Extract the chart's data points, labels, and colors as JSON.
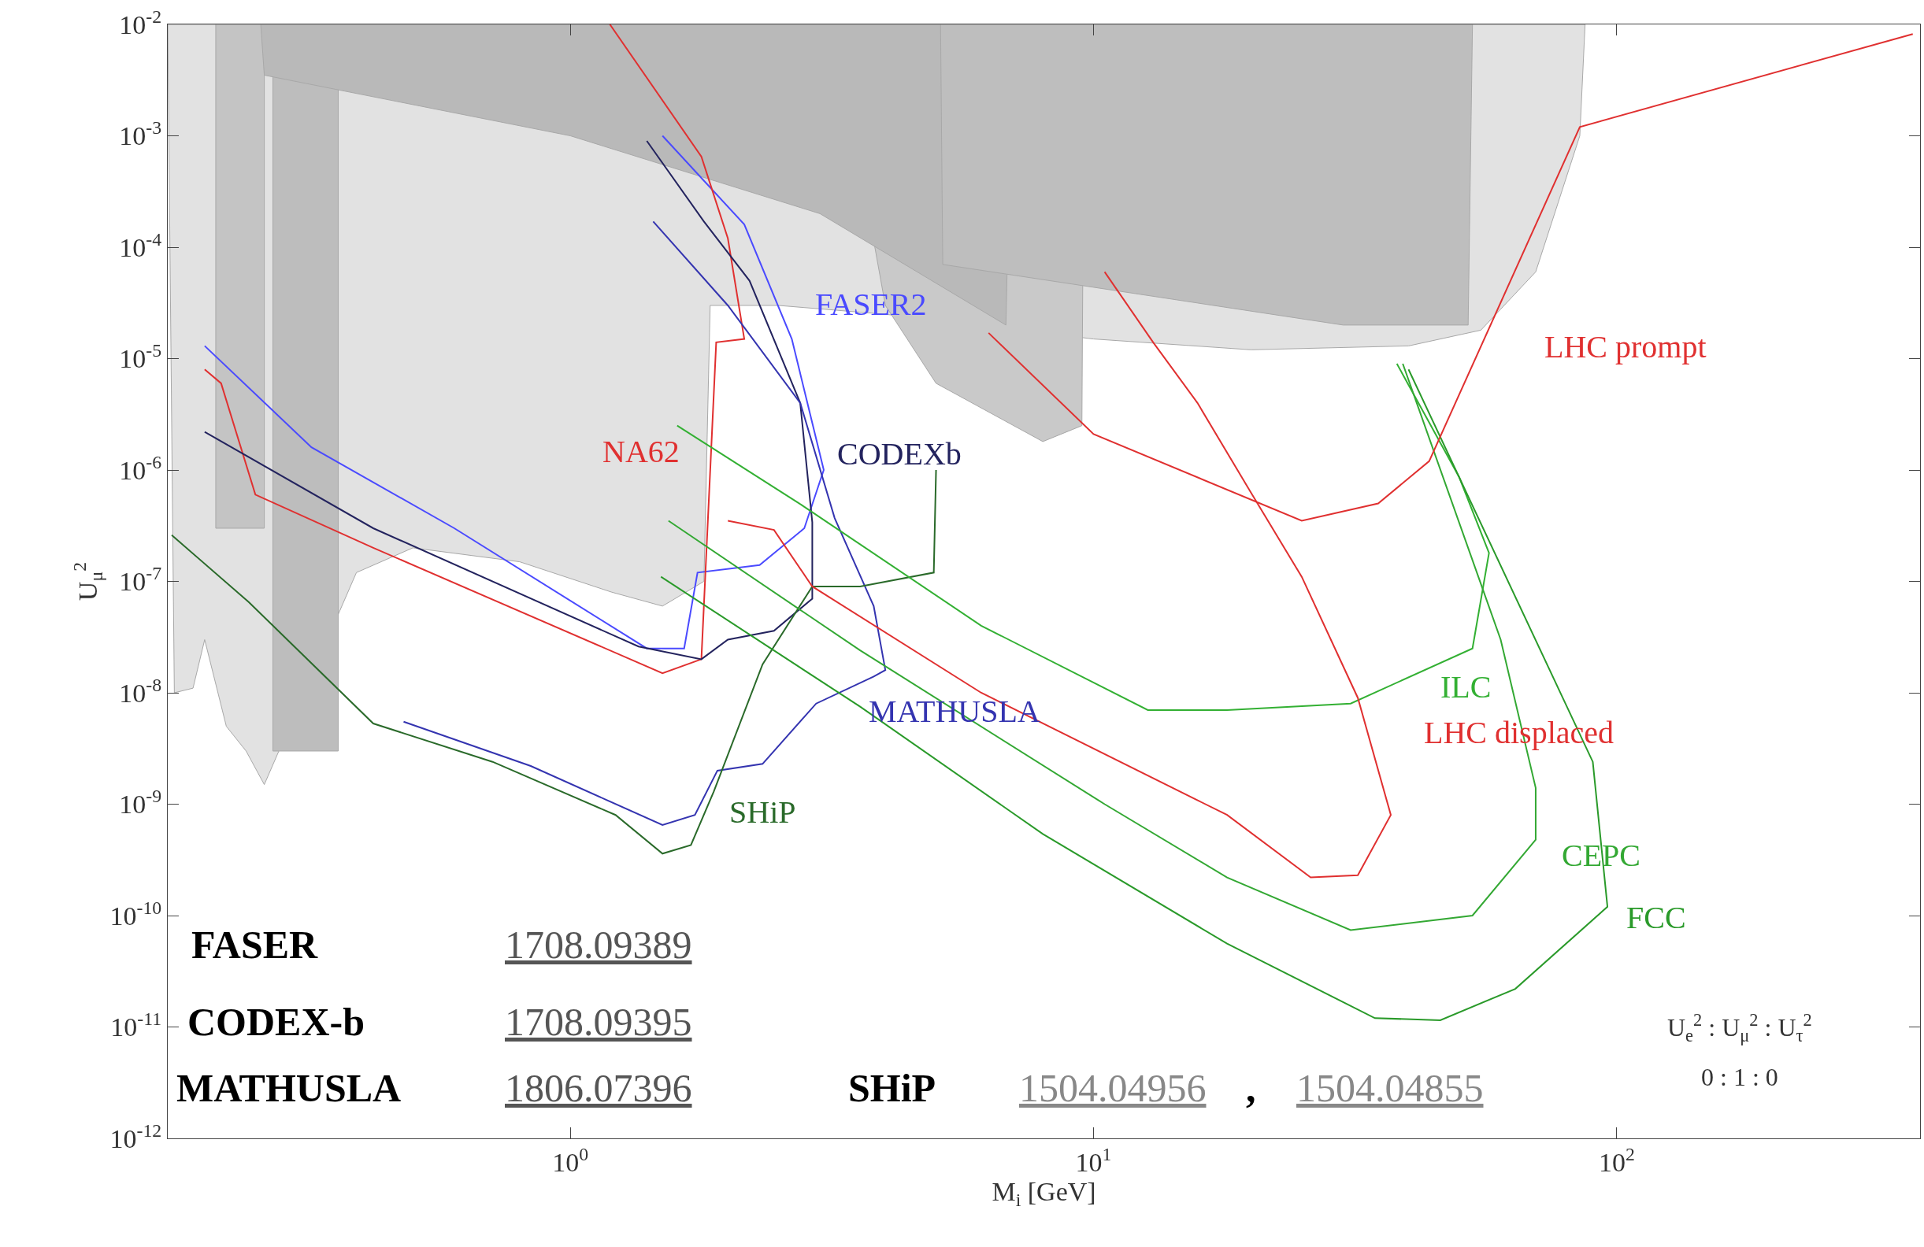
{
  "chart_data": {
    "type": "line",
    "xlabel": "M$_{i}$ [GeV]",
    "ylabel": "U$_{μ}$$^{2}$",
    "log": "xy",
    "xlim": [
      0.17,
      380
    ],
    "ylim": [
      1e-12,
      0.01
    ],
    "xticks": [
      {
        "value": 1,
        "label": "10$^{0}$"
      },
      {
        "value": 10,
        "label": "10$^{1}$"
      },
      {
        "value": 100,
        "label": "10$^{2}$"
      }
    ],
    "yticks": [
      {
        "value": 1e-12,
        "label": "10$^{-12}$"
      },
      {
        "value": 1e-11,
        "label": "10$^{-11}$"
      },
      {
        "value": 1e-10,
        "label": "10$^{-10}$"
      },
      {
        "value": 1e-09,
        "label": "10$^{-9}$"
      },
      {
        "value": 1e-08,
        "label": "10$^{-8}$"
      },
      {
        "value": 1e-07,
        "label": "10$^{-7}$"
      },
      {
        "value": 1e-06,
        "label": "10$^{-6}$"
      },
      {
        "value": 1e-05,
        "label": "10$^{-5}$"
      },
      {
        "value": 0.0001,
        "label": "10$^{-4}$"
      },
      {
        "value": 0.001,
        "label": "10$^{-3}$"
      },
      {
        "value": 0.01,
        "label": "10$^{-2}$"
      }
    ],
    "series": [
      {
        "type": "area",
        "color": "#e2e2e2",
        "x": [
          0.17,
          0.175,
          0.19,
          0.2,
          0.22,
          0.24,
          0.26,
          0.39,
          0.5,
          0.8,
          1.2,
          1.5,
          1.8,
          1.85,
          2.5,
          4,
          10,
          20,
          40,
          55,
          70,
          85,
          87
        ],
        "values": [
          0.01,
          1e-08,
          1.1e-08,
          3e-08,
          5e-09,
          3e-09,
          1.5e-09,
          1.2e-07,
          2e-07,
          1.5e-07,
          8e-08,
          6e-08,
          1e-07,
          3e-05,
          3e-05,
          2.5e-05,
          1.5e-05,
          1.2e-05,
          1.3e-05,
          1.8e-05,
          6e-05,
          0.001,
          0.01
        ]
      },
      {
        "type": "area",
        "color": "#c9c9c9",
        "x": [
          3.2,
          4,
          5,
          8,
          9.5,
          9.6
        ],
        "values": [
          0.01,
          3e-05,
          6e-06,
          1.8e-06,
          2.5e-06,
          0.01
        ]
      },
      {
        "type": "area",
        "color": "#c4c4c4",
        "x": [
          0.21,
          0.21,
          0.26,
          0.26
        ],
        "values": [
          0.01,
          3e-07,
          3e-07,
          0.01
        ]
      },
      {
        "type": "area",
        "color": "#bdbdbd",
        "x": [
          0.27,
          0.27,
          0.36,
          0.36
        ],
        "values": [
          0.01,
          3e-09,
          3e-09,
          0.01
        ]
      },
      {
        "type": "area",
        "color": "#b9b9b9",
        "x": [
          0.256,
          0.26,
          1,
          3,
          6.8,
          7
        ],
        "values": [
          0.01,
          0.0035,
          0.001,
          0.0002,
          2e-05,
          0.01
        ]
      },
      {
        "type": "area",
        "color": "#bebebe",
        "x": [
          5.1,
          5.15,
          30,
          52,
          53
        ],
        "values": [
          0.01,
          7e-05,
          2e-05,
          2e-05,
          0.01
        ]
      },
      {
        "color": "#4a4aff",
        "x": [
          0.2,
          0.32,
          0.6,
          1.4,
          1.65,
          1.75,
          2.3,
          2.8,
          3.05,
          2.65,
          2.15,
          1.5
        ],
        "values": [
          1.3e-05,
          1.6e-06,
          3e-07,
          2.5e-08,
          2.5e-08,
          1.2e-07,
          1.4e-07,
          3e-07,
          1e-06,
          1.5e-05,
          0.00016,
          0.001
        ]
      },
      {
        "color": "#e03030",
        "x": [
          0.2,
          0.215,
          0.25,
          0.42,
          1.5,
          1.78,
          1.9,
          2.15,
          2.0,
          1.78,
          1.19
        ],
        "values": [
          8e-06,
          6e-06,
          6e-07,
          2e-07,
          1.5e-08,
          2e-08,
          1.4e-05,
          1.5e-05,
          0.00012,
          0.00065,
          0.01
        ]
      },
      {
        "color": "#23235e",
        "x": [
          0.2,
          0.42,
          1.35,
          1.78,
          2.0,
          2.45,
          2.9,
          2.9,
          2.75,
          2.2,
          1.8,
          1.4
        ],
        "values": [
          2.2e-06,
          3e-07,
          2.6e-08,
          2e-08,
          3e-08,
          3.6e-08,
          7e-08,
          3.4e-07,
          4e-06,
          5e-05,
          0.00017,
          0.0009
        ]
      },
      {
        "color": "#3434b0",
        "x": [
          0.48,
          0.84,
          1.5,
          1.73,
          1.91,
          2.33,
          2.95,
          3.8,
          4.0,
          3.8,
          3.2,
          2.75,
          2.0,
          1.44
        ],
        "values": [
          5.5e-09,
          2.2e-09,
          6.5e-10,
          8e-10,
          2e-09,
          2.3e-09,
          8e-09,
          1.4e-08,
          1.6e-08,
          6e-08,
          3.7e-07,
          4e-06,
          3e-05,
          0.00017
        ]
      },
      {
        "color": "#2a6a2a",
        "x": [
          0.173,
          0.243,
          0.42,
          0.71,
          1.22,
          1.5,
          1.7,
          1.88,
          2.33,
          2.9,
          3.58,
          4.95,
          5.0
        ],
        "values": [
          2.6e-07,
          6.5e-08,
          5.3e-09,
          2.4e-09,
          8e-10,
          3.6e-10,
          4.3e-10,
          1.3e-09,
          1.8e-08,
          9e-08,
          9e-08,
          1.2e-07,
          1e-06
        ]
      },
      {
        "color": "#33b033",
        "x": [
          1.6,
          2.74,
          6.1,
          12.7,
          18,
          31,
          53,
          57,
          50,
          38
        ],
        "values": [
          2.5e-06,
          5e-07,
          4e-08,
          7e-09,
          7e-09,
          8e-09,
          2.5e-08,
          1.8e-07,
          8.6e-07,
          9e-06
        ]
      },
      {
        "color": "#33a833",
        "x": [
          1.54,
          3.58,
          10.5,
          18,
          31,
          53,
          70,
          70,
          60,
          39
        ],
        "values": [
          3.5e-07,
          2.4e-08,
          1e-09,
          2.2e-10,
          7.4e-11,
          1e-10,
          4.8e-10,
          1.4e-09,
          3e-08,
          9e-06
        ]
      },
      {
        "color": "#2a9a2a",
        "x": [
          1.49,
          3.58,
          8.0,
          18,
          34.5,
          46,
          64,
          96,
          90,
          40
        ],
        "values": [
          1.1e-07,
          7.5e-09,
          5.4e-10,
          5.6e-11,
          1.2e-11,
          1.15e-11,
          2.2e-11,
          1.2e-10,
          2.4e-09,
          8e-06
        ]
      },
      {
        "color": "#e03030",
        "x": [
          2.0,
          2.45,
          2.9,
          6.1,
          18,
          26,
          32,
          37,
          32,
          25,
          19.9,
          15.8,
          13,
          10.5
        ],
        "values": [
          3.5e-07,
          2.9e-07,
          9e-08,
          1e-08,
          8e-10,
          2.2e-10,
          2.3e-10,
          8e-10,
          9e-09,
          1.1e-07,
          6.5e-07,
          4e-06,
          1.4e-05,
          6e-05
        ]
      },
      {
        "color": "#e03030",
        "x": [
          6.3,
          10,
          25,
          35,
          43.8,
          85,
          368
        ],
        "values": [
          1.7e-05,
          2.1e-06,
          3.5e-07,
          5e-07,
          1.2e-06,
          0.0012,
          0.0082
        ]
      }
    ],
    "annotations": [
      "FASER2",
      "NA62",
      "CODEXb",
      "MATHUSLA",
      "SHiP",
      "ILC",
      "LHC displaced",
      "LHC prompt",
      "CEPC",
      "FCC",
      "U$_{e}$$^{2}$ : U$_{μ}$$^{2}$ : U$_{τ}$$^{2}$",
      "0 : 1 : 0",
      "FASER",
      "1708.09389",
      "CODEX-b",
      "1708.09395",
      "MATHUSLA",
      "1806.07396",
      "SHiP",
      "1504.04956",
      ",",
      "1504.04855"
    ]
  }
}
